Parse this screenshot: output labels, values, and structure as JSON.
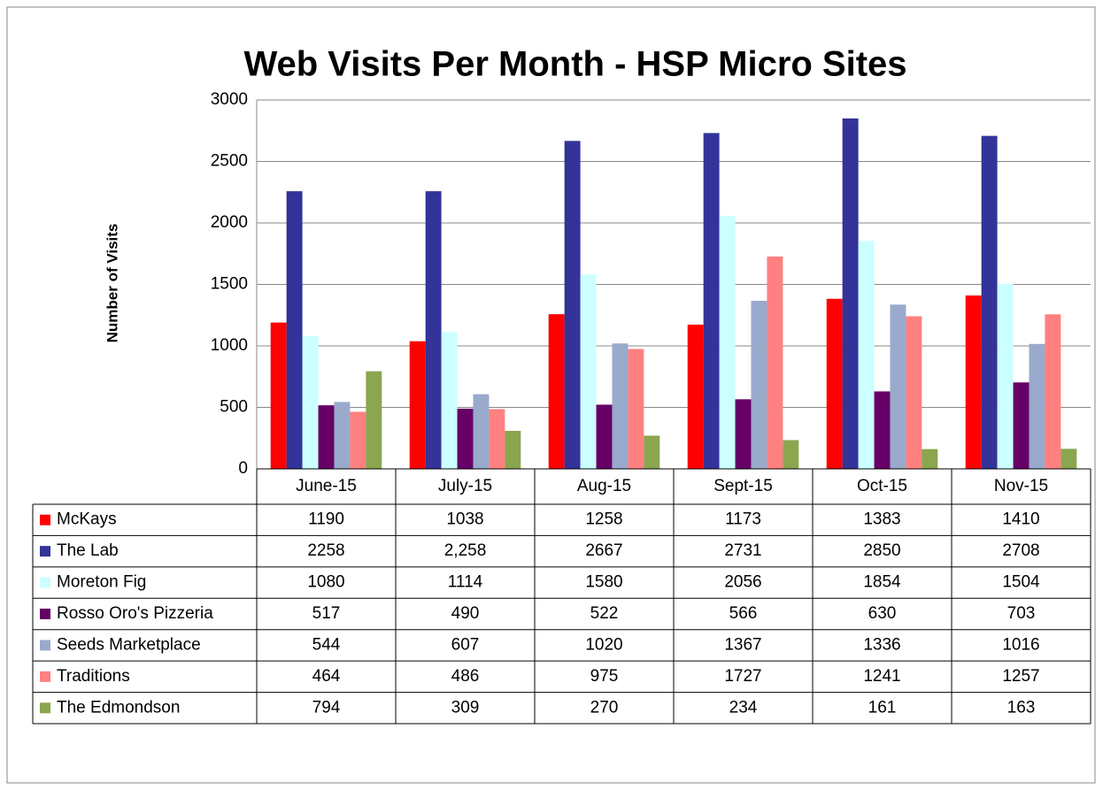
{
  "chart_data": {
    "type": "bar",
    "title": "Web Visits Per Month - HSP Micro Sites",
    "y_label": "Number of Visits",
    "categories": [
      "June-15",
      "July-15",
      "Aug-15",
      "Sept-15",
      "Oct-15",
      "Nov-15"
    ],
    "series": [
      {
        "name": "McKays",
        "color": "#ff0000",
        "values": [
          1190,
          1038,
          1258,
          1173,
          1383,
          1410
        ]
      },
      {
        "name": "The Lab",
        "color": "#333399",
        "values": [
          2258,
          2258,
          2667,
          2731,
          2850,
          2708
        ],
        "value_labels": [
          "2258",
          "2,258",
          "2667",
          "2731",
          "2850",
          "2708"
        ]
      },
      {
        "name": "Moreton Fig",
        "color": "#ccffff",
        "values": [
          1080,
          1114,
          1580,
          2056,
          1854,
          1504
        ]
      },
      {
        "name": "Rosso Oro's Pizzeria",
        "color": "#660066",
        "values": [
          517,
          490,
          522,
          566,
          630,
          703
        ]
      },
      {
        "name": "Seeds Marketplace",
        "color": "#99aacc",
        "values": [
          544,
          607,
          1020,
          1367,
          1336,
          1016
        ]
      },
      {
        "name": "Traditions",
        "color": "#ff8080",
        "values": [
          464,
          486,
          975,
          1727,
          1241,
          1257
        ]
      },
      {
        "name": "The Edmondson",
        "color": "#8aa64e",
        "values": [
          794,
          309,
          270,
          234,
          161,
          163
        ]
      }
    ],
    "ylim": [
      0,
      3000
    ],
    "yticks": [
      0,
      500,
      1000,
      1500,
      2000,
      2500,
      3000
    ],
    "grid": true
  }
}
